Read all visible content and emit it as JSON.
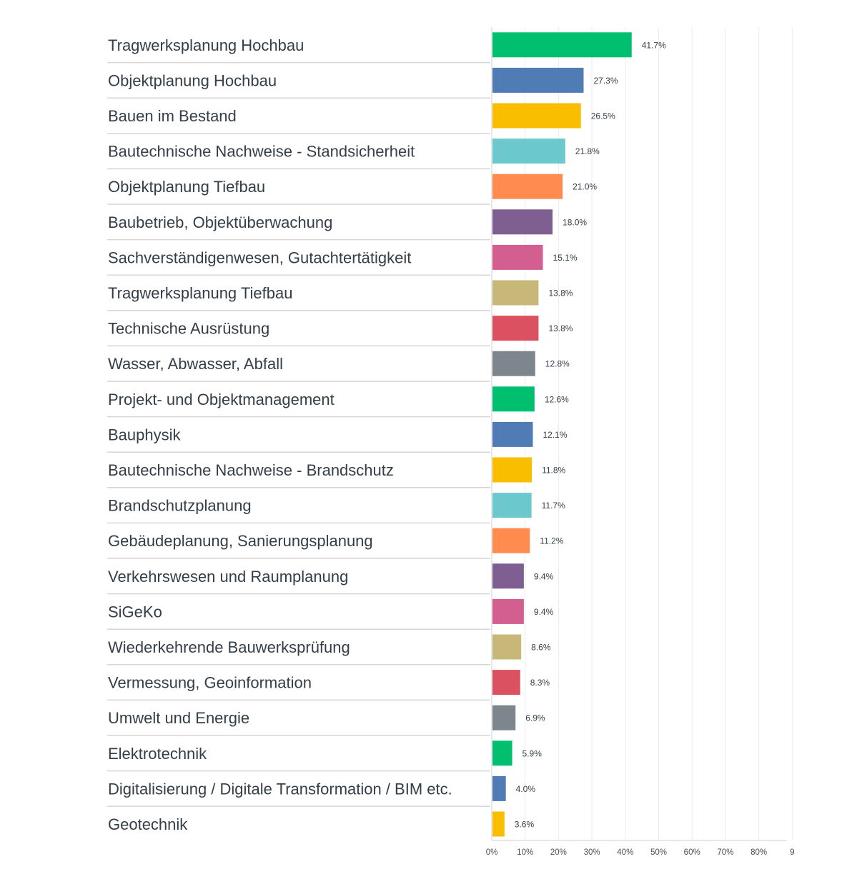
{
  "chart_data": {
    "type": "bar",
    "orientation": "horizontal",
    "categories": [
      "Tragwerksplanung Hochbau",
      "Objektplanung Hochbau",
      "Bauen im Bestand",
      "Bautechnische Nachweise - Standsicherheit",
      "Objektplanung Tiefbau",
      "Baubetrieb, Objektüberwachung",
      "Sachverständigenwesen, Gutachtertätigkeit",
      "Tragwerksplanung Tiefbau",
      "Technische Ausrüstung",
      "Wasser, Abwasser, Abfall",
      "Projekt- und Objektmanagement",
      "Bauphysik",
      "Bautechnische Nachweise - Brandschutz",
      "Brandschutzplanung",
      "Gebäudeplanung, Sanierungsplanung",
      "Verkehrswesen und Raumplanung",
      "SiGeKo",
      "Wiederkehrende Bauwerksprüfung",
      "Vermessung, Geoinformation",
      "Umwelt und Energie",
      "Elektrotechnik",
      "Digitalisierung / Digitale Transformation / BIM etc.",
      "Geotechnik"
    ],
    "values": [
      41.7,
      27.3,
      26.5,
      21.8,
      21.0,
      18.0,
      15.1,
      13.8,
      13.8,
      12.8,
      12.6,
      12.1,
      11.8,
      11.7,
      11.2,
      9.4,
      9.4,
      8.6,
      8.3,
      6.9,
      5.9,
      4.0,
      3.6
    ],
    "value_labels": [
      "41.7%",
      "27.3%",
      "26.5%",
      "21.8%",
      "21.0%",
      "18.0%",
      "15.1%",
      "13.8%",
      "13.8%",
      "12.8%",
      "12.6%",
      "12.1%",
      "11.8%",
      "11.7%",
      "11.2%",
      "9.4%",
      "9.4%",
      "8.6%",
      "8.3%",
      "6.9%",
      "5.9%",
      "4.0%",
      "3.6%"
    ],
    "x_ticks": [
      "0%",
      "10%",
      "20%",
      "30%",
      "40%",
      "50%",
      "60%",
      "70%",
      "80%",
      "9"
    ],
    "xlim": [
      0,
      90
    ],
    "grid": true,
    "legend": "none",
    "palette": [
      "#00bf6f",
      "#507cb6",
      "#f9be00",
      "#6bc8cd",
      "#ff8b4f",
      "#7f5e91",
      "#d25f90",
      "#c7b879",
      "#dc5162",
      "#7d868c"
    ]
  }
}
